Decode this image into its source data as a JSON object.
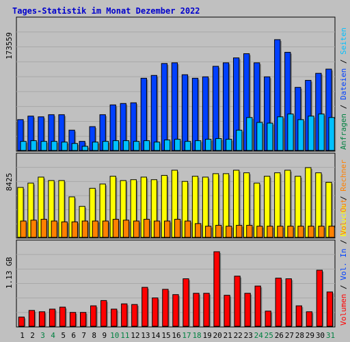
{
  "title": "Tages-Statistik im Monat Dezember 2022",
  "colors": {
    "title": "#0000cc",
    "background": "#c0c0c0",
    "plot_bg": "#c0c0c0",
    "grid": "#999999",
    "anfragen": "#0040ff",
    "dateien": "#00c0ff",
    "seiten": "#00c0ff",
    "besuche": "#ffff00",
    "rechner": "#ff8000",
    "vol_out": "#ff8000",
    "vol_in": "#0040ff",
    "volumen": "#ff0000",
    "weekend_day": "#008040",
    "weekday": "#000000"
  },
  "chart_data": [
    {
      "type": "bar",
      "panel": "hits",
      "y_max_label": "173559",
      "y_max": 173559,
      "right_legend": [
        {
          "text": "Anfragen",
          "color": "#008040"
        },
        {
          "text": "Dateien",
          "color": "#0040ff"
        },
        {
          "text": "Seiten",
          "color": "#00c0ff"
        }
      ],
      "right_legend_sep": "/",
      "categories": [
        "1",
        "2",
        "3",
        "4",
        "5",
        "6",
        "7",
        "8",
        "9",
        "10",
        "11",
        "12",
        "13",
        "14",
        "15",
        "16",
        "17",
        "18",
        "19",
        "20",
        "21",
        "22",
        "23",
        "24",
        "25",
        "26",
        "27",
        "28",
        "29",
        "30",
        "31"
      ],
      "series": [
        {
          "name": "Anfragen",
          "color": "#0040ff",
          "values": [
            44000,
            49000,
            48000,
            51000,
            51000,
            29000,
            13000,
            34000,
            51000,
            65000,
            67000,
            68000,
            103000,
            107000,
            124000,
            125000,
            108000,
            103000,
            105000,
            120000,
            125000,
            132000,
            138000,
            125000,
            105000,
            158000,
            140000,
            90000,
            100000,
            110000,
            116000
          ]
        },
        {
          "name": "Seiten",
          "color": "#00c0ff",
          "values": [
            13000,
            14000,
            13000,
            13000,
            12000,
            10000,
            6000,
            12000,
            13000,
            14000,
            14000,
            13000,
            14000,
            12000,
            15000,
            16000,
            13000,
            14000,
            16000,
            17000,
            16000,
            29000,
            47000,
            40000,
            39000,
            48000,
            52000,
            44000,
            49000,
            52000,
            47000
          ]
        }
      ]
    },
    {
      "type": "bar",
      "panel": "visits",
      "y_max_label": "8425",
      "y_max": 8425,
      "right_legend": [
        {
          "text": "Besuche",
          "color": "#ffff00"
        },
        {
          "text": "Rechner",
          "color": "#ff8000"
        }
      ],
      "right_legend_sep": "/",
      "categories": [
        "1",
        "2",
        "3",
        "4",
        "5",
        "6",
        "7",
        "8",
        "9",
        "10",
        "11",
        "12",
        "13",
        "14",
        "15",
        "16",
        "17",
        "18",
        "19",
        "20",
        "21",
        "22",
        "23",
        "24",
        "25",
        "26",
        "27",
        "28",
        "29",
        "30",
        "31"
      ],
      "series": [
        {
          "name": "Besuche",
          "color": "#ffff00",
          "values": [
            5800,
            6300,
            7000,
            6600,
            6600,
            4700,
            3600,
            5700,
            6200,
            7100,
            6600,
            6700,
            7000,
            6700,
            7200,
            7800,
            6500,
            7100,
            7000,
            7400,
            7400,
            7800,
            7500,
            6300,
            7100,
            7500,
            7800,
            7100,
            8100,
            7500,
            6400
          ]
        },
        {
          "name": "Rechner",
          "color": "#ff8000",
          "values": [
            1900,
            2000,
            2100,
            1900,
            1800,
            1800,
            1900,
            1900,
            1900,
            2100,
            2000,
            1900,
            2100,
            1900,
            1900,
            2100,
            1900,
            1600,
            1300,
            1400,
            1300,
            1400,
            1400,
            1300,
            1300,
            1300,
            1300,
            1300,
            1300,
            1300,
            1300
          ]
        }
      ]
    },
    {
      "type": "bar",
      "panel": "volume",
      "y_max_label": "1.13 GB",
      "y_max": 1.13,
      "y_unit": "GB",
      "right_legend": [
        {
          "text": "Volumen",
          "color": "#ff0000"
        },
        {
          "text": "Vol. In",
          "color": "#0040ff"
        },
        {
          "text": "Vol. Out",
          "color": "#ff8000"
        }
      ],
      "right_legend_sep": "/",
      "categories": [
        "1",
        "2",
        "3",
        "4",
        "5",
        "6",
        "7",
        "8",
        "9",
        "10",
        "11",
        "12",
        "13",
        "14",
        "15",
        "16",
        "17",
        "18",
        "19",
        "20",
        "21",
        "22",
        "23",
        "24",
        "25",
        "26",
        "27",
        "28",
        "29",
        "30",
        "31"
      ],
      "series": [
        {
          "name": "Volumen",
          "color": "#ff0000",
          "values": [
            0.14,
            0.24,
            0.22,
            0.26,
            0.29,
            0.21,
            0.21,
            0.31,
            0.39,
            0.26,
            0.34,
            0.33,
            0.59,
            0.43,
            0.56,
            0.48,
            0.72,
            0.5,
            0.5,
            1.13,
            0.47,
            0.76,
            0.5,
            0.61,
            0.23,
            0.73,
            0.72,
            0.31,
            0.22,
            0.85,
            0.52
          ]
        }
      ]
    }
  ],
  "x_axis": {
    "labels": [
      "1",
      "2",
      "3",
      "4",
      "5",
      "6",
      "7",
      "8",
      "9",
      "10",
      "11",
      "12",
      "13",
      "14",
      "15",
      "16",
      "17",
      "18",
      "19",
      "20",
      "21",
      "22",
      "23",
      "24",
      "25",
      "26",
      "27",
      "28",
      "29",
      "30",
      "31"
    ],
    "weekend": [
      3,
      4,
      10,
      11,
      17,
      18,
      24,
      25,
      31
    ]
  }
}
